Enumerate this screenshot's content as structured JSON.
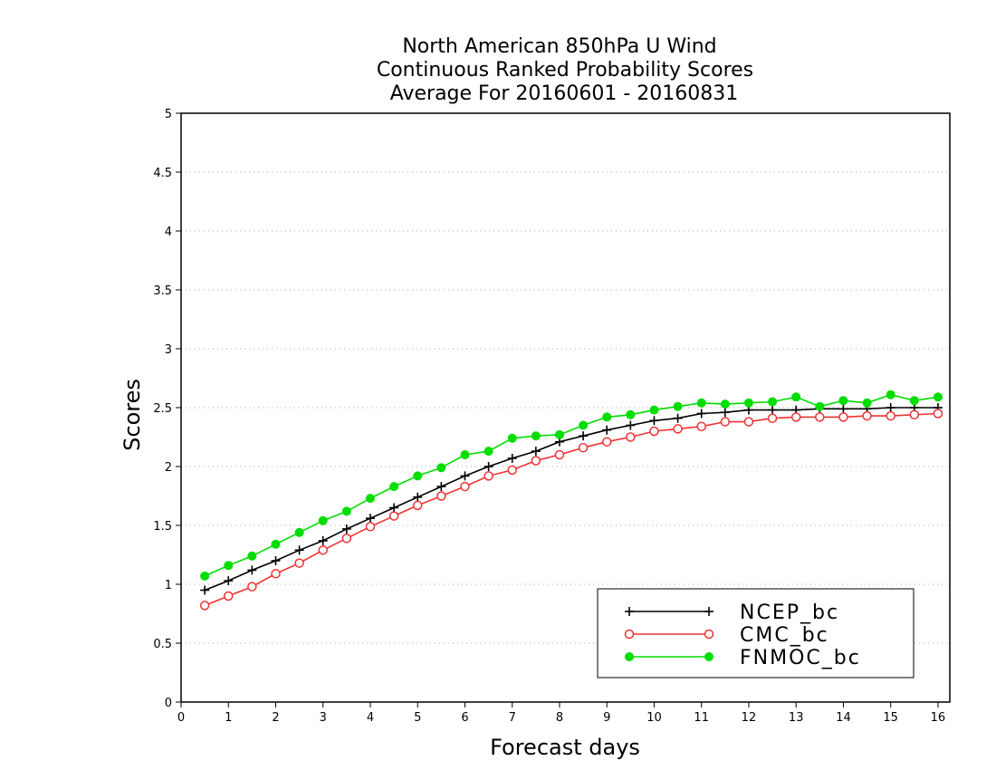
{
  "chart_data": {
    "type": "line",
    "title": [
      "North American 850hPa U Wind",
      "Continuous Ranked Probability Scores",
      "Average For 20160601 - 20160831"
    ],
    "xlabel": "Forecast days",
    "ylabel": "Scores",
    "xlim": [
      0,
      16.25
    ],
    "ylim": [
      0,
      5
    ],
    "xticks": [
      0,
      1,
      2,
      3,
      4,
      5,
      6,
      7,
      8,
      9,
      10,
      11,
      12,
      13,
      14,
      15,
      16
    ],
    "yticks": [
      0,
      0.5,
      1,
      1.5,
      2,
      2.5,
      3,
      3.5,
      4,
      4.5,
      5
    ],
    "xtick_labels": [
      "0",
      "1",
      "2",
      "3",
      "4",
      "5",
      "6",
      "7",
      "8",
      "9",
      "10",
      "11",
      "12",
      "13",
      "14",
      "15",
      "16"
    ],
    "ytick_labels": [
      "0",
      "0.5",
      "1",
      "1.5",
      "2",
      "2.5",
      "3",
      "3.5",
      "4",
      "4.5",
      "5"
    ],
    "grid": "horizontal dotted",
    "legend_position": "bottom-right",
    "x": [
      0.5,
      1.0,
      1.5,
      2.0,
      2.5,
      3.0,
      3.5,
      4.0,
      4.5,
      5.0,
      5.5,
      6.0,
      6.5,
      7.0,
      7.5,
      8.0,
      8.5,
      9.0,
      9.5,
      10.0,
      10.5,
      11.0,
      11.5,
      12.0,
      12.5,
      13.0,
      13.5,
      14.0,
      14.5,
      15.0,
      15.5,
      16.0
    ],
    "series": [
      {
        "name": "NCEP_bc",
        "color": "#000000",
        "marker": "plus",
        "values": [
          0.95,
          1.03,
          1.12,
          1.2,
          1.29,
          1.37,
          1.47,
          1.56,
          1.65,
          1.74,
          1.83,
          1.92,
          2.0,
          2.07,
          2.13,
          2.21,
          2.26,
          2.31,
          2.35,
          2.39,
          2.41,
          2.45,
          2.46,
          2.48,
          2.48,
          2.48,
          2.49,
          2.49,
          2.49,
          2.5,
          2.5,
          2.5
        ]
      },
      {
        "name": "CMC_bc",
        "color": "#ee3333",
        "marker": "open-circle",
        "values": [
          0.82,
          0.9,
          0.98,
          1.09,
          1.18,
          1.29,
          1.39,
          1.49,
          1.58,
          1.67,
          1.75,
          1.83,
          1.92,
          1.97,
          2.05,
          2.1,
          2.16,
          2.21,
          2.25,
          2.3,
          2.32,
          2.34,
          2.38,
          2.38,
          2.41,
          2.42,
          2.42,
          2.42,
          2.43,
          2.43,
          2.44,
          2.45
        ]
      },
      {
        "name": "FNMOC_bc",
        "color": "#00dd00",
        "marker": "filled-circle",
        "values": [
          1.07,
          1.16,
          1.24,
          1.34,
          1.44,
          1.54,
          1.62,
          1.73,
          1.83,
          1.92,
          1.99,
          2.1,
          2.13,
          2.24,
          2.26,
          2.27,
          2.35,
          2.42,
          2.44,
          2.48,
          2.51,
          2.54,
          2.53,
          2.54,
          2.55,
          2.59,
          2.51,
          2.56,
          2.54,
          2.61,
          2.56,
          2.59
        ]
      }
    ]
  }
}
